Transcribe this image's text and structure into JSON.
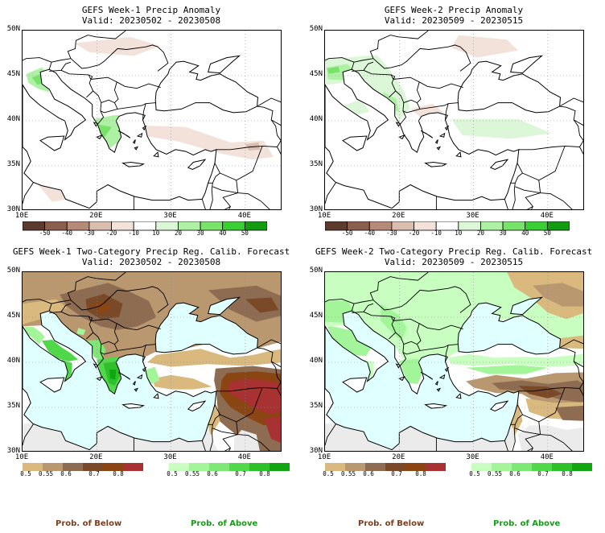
{
  "panels": [
    {
      "title": "GEFS Week-1 Precip Anomaly",
      "valid": "Valid: 20230502 - 20230508"
    },
    {
      "title": "GEFS Week-2 Precip Anomaly",
      "valid": "Valid: 20230509 - 20230515"
    },
    {
      "title": "GEFS Week-1 Two-Category Precip Reg. Calib. Forecast",
      "valid": "Valid: 20230502 - 20230508"
    },
    {
      "title": "GEFS Week-2 Two-Category Precip Reg. Calib. Forecast",
      "valid": "Valid: 20230509 - 20230515"
    }
  ],
  "lat_labels": [
    "50N",
    "45N",
    "40N",
    "35N",
    "30N"
  ],
  "lon_labels": [
    "10E",
    "20E",
    "30E",
    "40E"
  ],
  "anomaly_colorbar": {
    "labels": [
      "-50",
      "-40",
      "-30",
      "-20",
      "-10",
      "10",
      "20",
      "30",
      "40",
      "50"
    ],
    "colors": [
      "#5c3a2e",
      "#8b5f4d",
      "#b58a79",
      "#dbbdb0",
      "#f3e2da",
      "#ffffff",
      "#dcf7d7",
      "#aef0a4",
      "#78e26a",
      "#3ccf35",
      "#139c12"
    ]
  },
  "below_colorbar": {
    "labels": [
      "0.5",
      "0.55",
      "0.6",
      "0.7",
      "0.8"
    ],
    "colors": [
      "#d9b97e",
      "#b9976f",
      "#8e6c52",
      "#7a4a28",
      "#8b4513",
      "#a83232"
    ]
  },
  "above_colorbar": {
    "labels": [
      "0.5",
      "0.55",
      "0.6",
      "0.7",
      "0.8"
    ],
    "colors": [
      "#c8ffc0",
      "#a3f59a",
      "#7ee874",
      "#51d84a",
      "#2ec02a",
      "#11a511"
    ]
  },
  "footer": {
    "below_label": "Prob. of Below",
    "above_label": "Prob. of Above"
  },
  "colors": {
    "below_text": "#7a3e1e",
    "above_text": "#1a9a1a",
    "sea": "#e0ffff",
    "no_data": "#ebebeb"
  }
}
